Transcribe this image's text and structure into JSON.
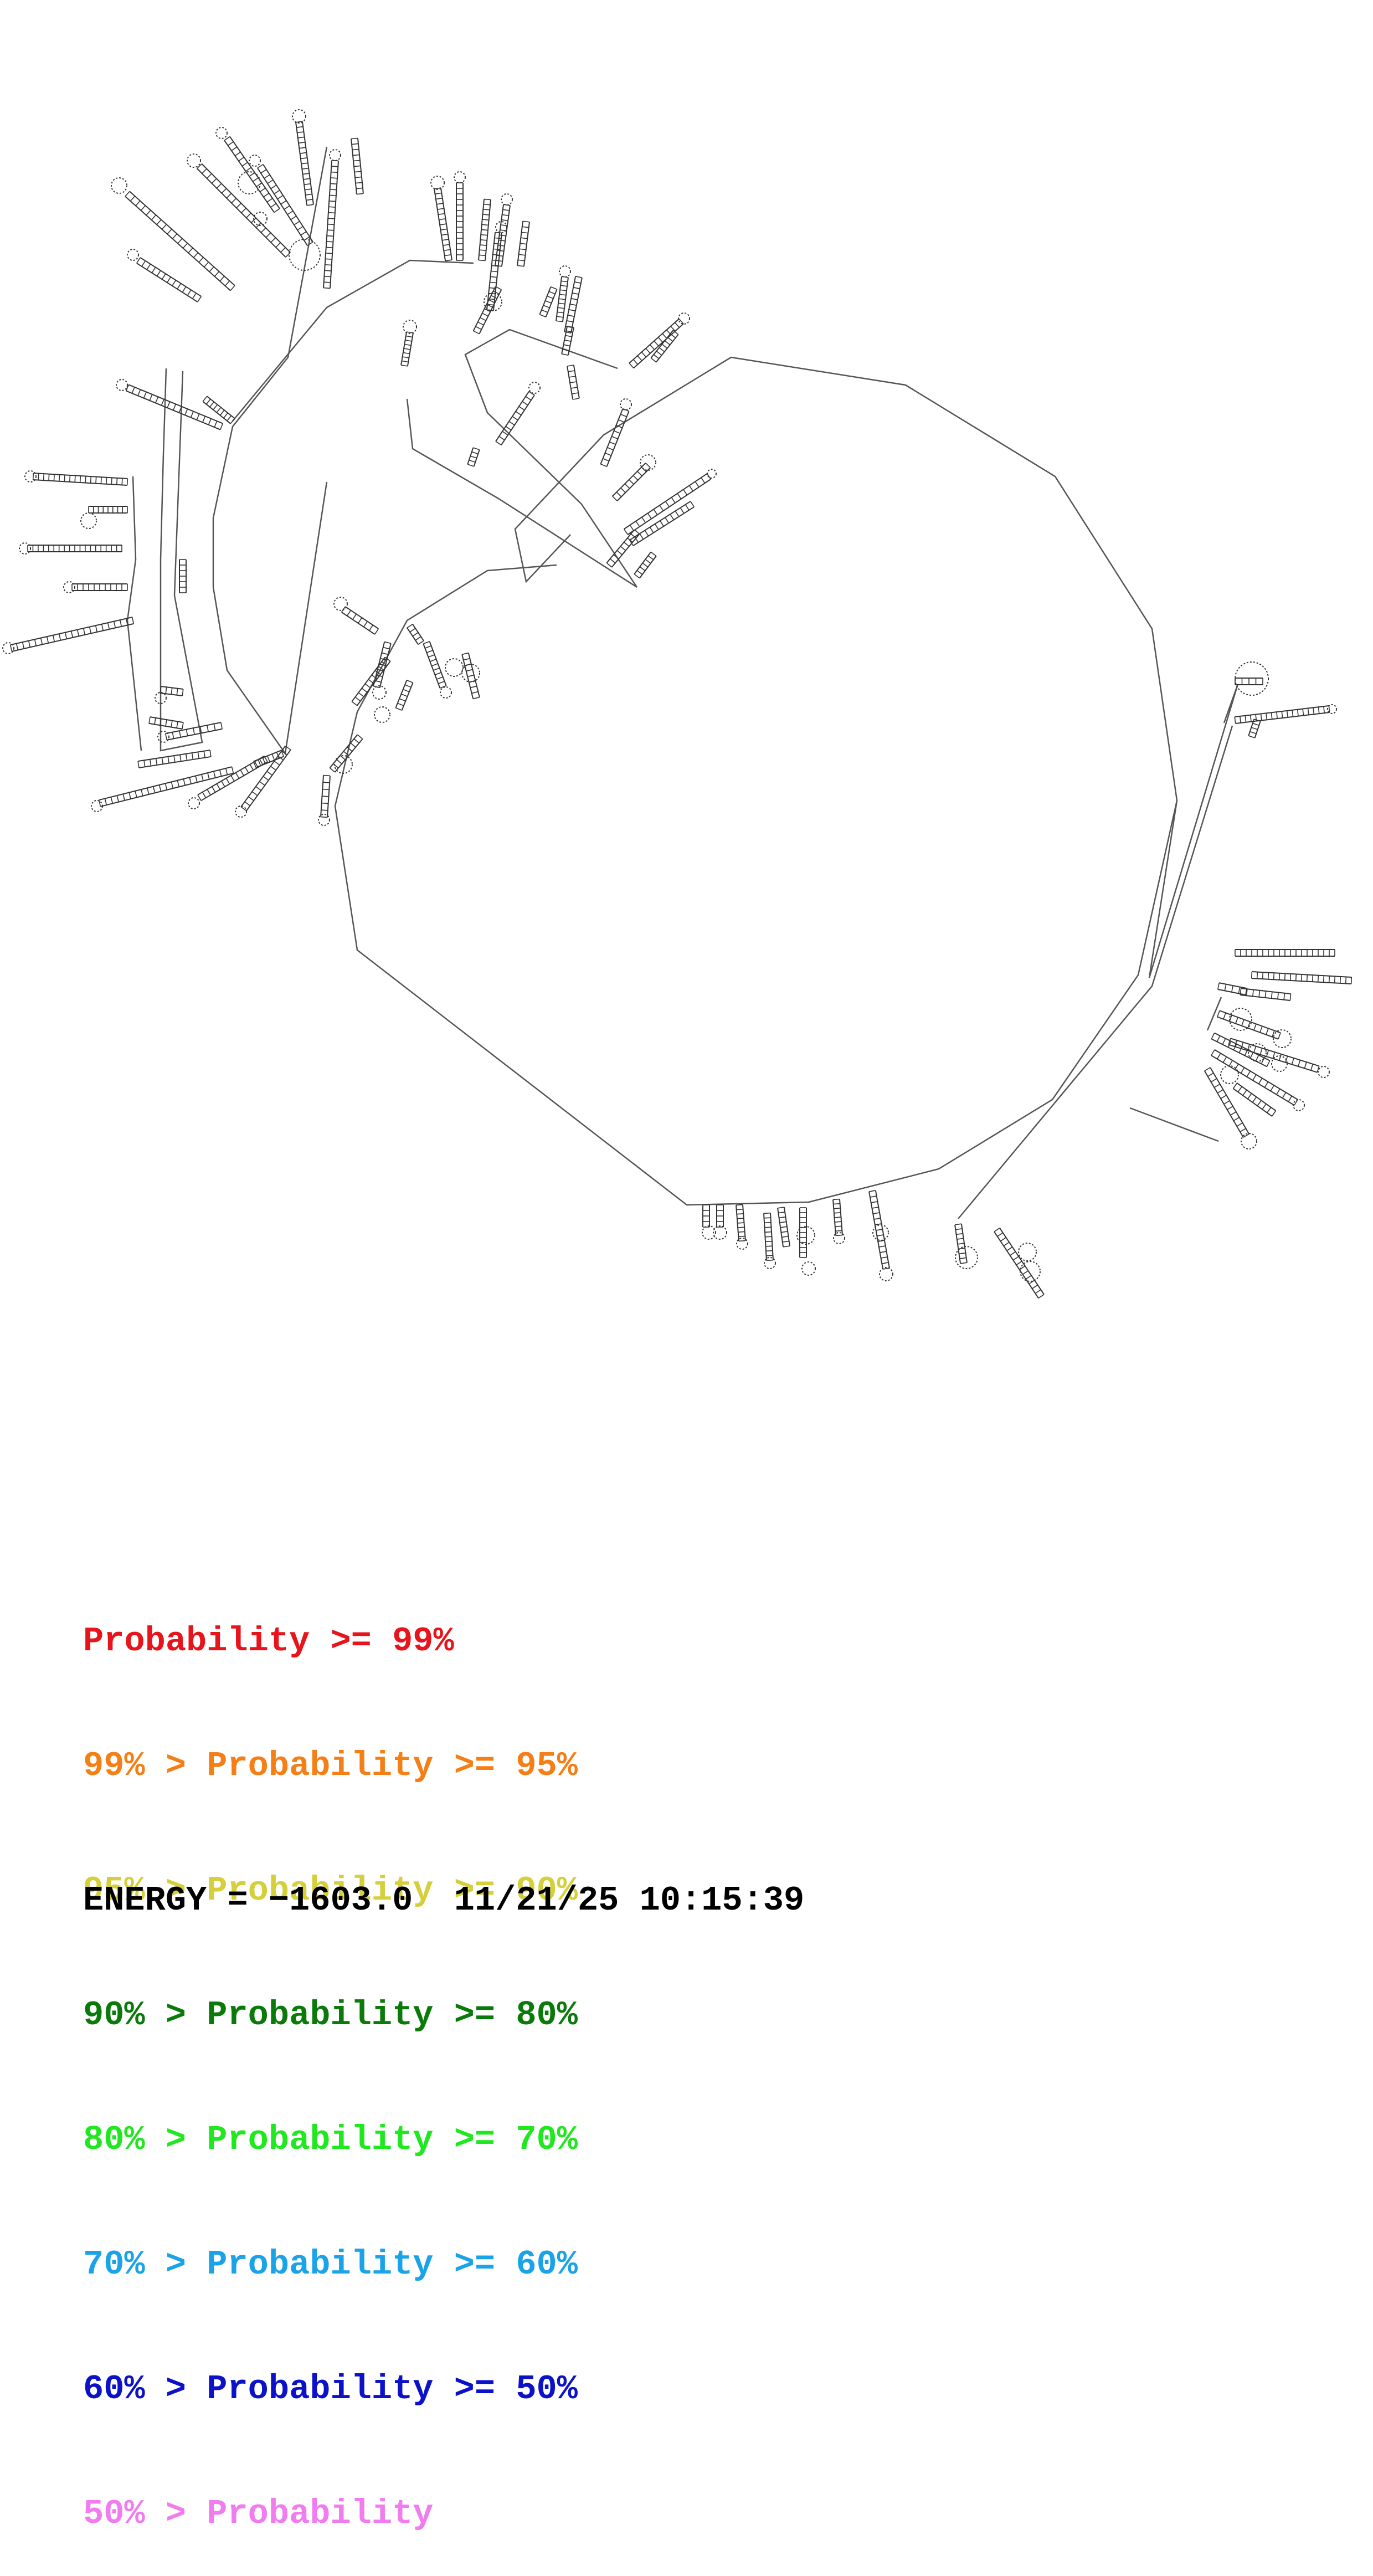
{
  "legend": {
    "rows": [
      {
        "prefix": "",
        "label": "Probability >= 99%",
        "color": "#e8141c"
      },
      {
        "prefix": "99% > ",
        "label": "Probability >= 95%",
        "color": "#f57f17"
      },
      {
        "prefix": "95% > ",
        "label": "Probability >= 90%",
        "color": "#d4cf3a"
      },
      {
        "prefix": "90% > ",
        "label": "Probability >= 80%",
        "color": "#0b7a0b"
      },
      {
        "prefix": "80% > ",
        "label": "Probability >= 70%",
        "color": "#1fe81f"
      },
      {
        "prefix": "70% > ",
        "label": "Probability >= 60%",
        "color": "#1aa3e8"
      },
      {
        "prefix": "60% > ",
        "label": "Probability >= 50%",
        "color": "#0b12c8"
      },
      {
        "prefix": "50% > ",
        "label": "Probability",
        "color": "#f07cf0"
      }
    ]
  },
  "energy": {
    "text": "ENERGY = −1603.0  11/21/25 10:15:39"
  },
  "structure": {
    "line_color": "#555555",
    "base_color": "#333333"
  }
}
